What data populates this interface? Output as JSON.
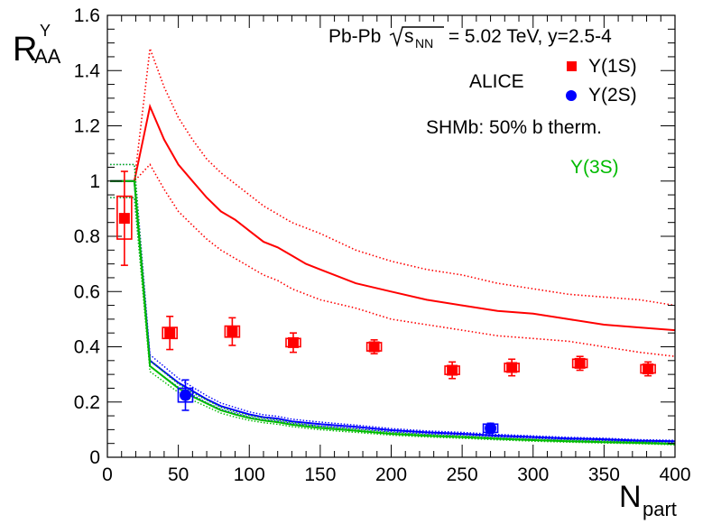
{
  "chart_data": {
    "type": "scatter",
    "title": "",
    "xlabel_main": "N",
    "xlabel_sub": "part",
    "ylabel_main": "R",
    "ylabel_sub": "AA",
    "ylabel_sup": "Υ",
    "xlim": [
      0,
      400
    ],
    "ylim": [
      0,
      1.6
    ],
    "x_ticks": [
      0,
      50,
      100,
      150,
      200,
      250,
      300,
      350,
      400
    ],
    "x_tick_labels": [
      "0",
      "50",
      "100",
      "150",
      "200",
      "250",
      "300",
      "350",
      "400"
    ],
    "y_ticks": [
      0,
      0.2,
      0.4,
      0.6,
      0.8,
      1,
      1.2,
      1.4,
      1.6
    ],
    "y_tick_labels": [
      "0",
      "0.2",
      "0.4",
      "0.6",
      "0.8",
      "1",
      "1.2",
      "1.4",
      "1.6"
    ],
    "annotations": {
      "system_pre": "Pb-Pb ",
      "sqrt_s": "s",
      "sqrt_s_sub": "NN",
      "system_post": " = 5.02 TeV, y=2.5-4",
      "experiment": "ALICE",
      "model": "SHMb: 50% b therm."
    },
    "legend": {
      "position": "top-right",
      "entries": [
        "Υ(1S)",
        "Υ(2S)",
        "Υ(3S)"
      ]
    },
    "data_series": [
      {
        "name": "Υ(1S)",
        "color": "#ff0000",
        "marker": "square",
        "points": [
          {
            "x": 12,
            "y": 0.865,
            "stat": 0.17,
            "sys_lo": 0.79,
            "sys_hi": 0.945
          },
          {
            "x": 44,
            "y": 0.45,
            "stat": 0.06,
            "sys_lo": 0.43,
            "sys_hi": 0.47
          },
          {
            "x": 88,
            "y": 0.455,
            "stat": 0.05,
            "sys_lo": 0.435,
            "sys_hi": 0.475
          },
          {
            "x": 131,
            "y": 0.415,
            "stat": 0.035,
            "sys_lo": 0.4,
            "sys_hi": 0.43
          },
          {
            "x": 188,
            "y": 0.4,
            "stat": 0.025,
            "sys_lo": 0.385,
            "sys_hi": 0.415
          },
          {
            "x": 243,
            "y": 0.315,
            "stat": 0.03,
            "sys_lo": 0.3,
            "sys_hi": 0.33
          },
          {
            "x": 285,
            "y": 0.325,
            "stat": 0.03,
            "sys_lo": 0.31,
            "sys_hi": 0.34
          },
          {
            "x": 333,
            "y": 0.34,
            "stat": 0.025,
            "sys_lo": 0.325,
            "sys_hi": 0.355
          },
          {
            "x": 381,
            "y": 0.32,
            "stat": 0.025,
            "sys_lo": 0.305,
            "sys_hi": 0.335
          }
        ]
      },
      {
        "name": "Υ(2S)",
        "color": "#0000ff",
        "marker": "circle",
        "points": [
          {
            "x": 55,
            "y": 0.225,
            "stat": 0.055,
            "sys_lo": 0.2,
            "sys_hi": 0.25
          },
          {
            "x": 270,
            "y": 0.105,
            "stat": 0.018,
            "sys_lo": 0.09,
            "sys_hi": 0.12
          }
        ]
      }
    ],
    "model_curves": [
      {
        "name": "Υ(1S) SHMb",
        "color": "#ff0000",
        "style": "solid",
        "x": [
          2,
          19,
          30,
          40,
          50,
          60,
          70,
          80,
          90,
          100,
          110,
          120,
          130,
          140,
          150,
          175,
          200,
          225,
          250,
          275,
          300,
          325,
          350,
          375,
          400
        ],
        "y": [
          1.0,
          1.0,
          1.27,
          1.15,
          1.06,
          1.0,
          0.94,
          0.89,
          0.86,
          0.82,
          0.78,
          0.76,
          0.73,
          0.7,
          0.68,
          0.63,
          0.6,
          0.57,
          0.55,
          0.53,
          0.52,
          0.5,
          0.48,
          0.47,
          0.46
        ]
      },
      {
        "name": "Υ(1S) SHMb upper",
        "color": "#ff0000",
        "style": "dotted",
        "x": [
          2,
          19,
          30,
          40,
          50,
          60,
          70,
          80,
          90,
          100,
          110,
          120,
          130,
          140,
          150,
          175,
          200,
          225,
          250,
          275,
          300,
          325,
          350,
          375,
          400
        ],
        "y": [
          1.0,
          1.0,
          1.48,
          1.34,
          1.23,
          1.15,
          1.08,
          1.03,
          0.99,
          0.95,
          0.91,
          0.88,
          0.85,
          0.83,
          0.81,
          0.75,
          0.71,
          0.68,
          0.66,
          0.63,
          0.61,
          0.59,
          0.58,
          0.57,
          0.55
        ]
      },
      {
        "name": "Υ(1S) SHMb lower",
        "color": "#ff0000",
        "style": "dotted",
        "x": [
          2,
          19,
          30,
          40,
          50,
          60,
          70,
          80,
          90,
          100,
          110,
          120,
          130,
          140,
          150,
          175,
          200,
          225,
          250,
          275,
          300,
          325,
          350,
          375,
          400
        ],
        "y": [
          1.0,
          1.0,
          1.06,
          0.97,
          0.89,
          0.84,
          0.79,
          0.75,
          0.72,
          0.69,
          0.66,
          0.64,
          0.61,
          0.59,
          0.57,
          0.54,
          0.5,
          0.48,
          0.46,
          0.44,
          0.43,
          0.42,
          0.4,
          0.38,
          0.365
        ]
      },
      {
        "name": "Υ(2S) SHMb",
        "color": "#0000ff",
        "style": "solid",
        "x": [
          2,
          19,
          30,
          40,
          50,
          60,
          70,
          80,
          90,
          100,
          110,
          120,
          130,
          140,
          150,
          175,
          200,
          225,
          250,
          275,
          300,
          325,
          350,
          375,
          400
        ],
        "y": [
          1.0,
          1.0,
          0.35,
          0.31,
          0.27,
          0.24,
          0.21,
          0.185,
          0.17,
          0.155,
          0.145,
          0.14,
          0.13,
          0.125,
          0.12,
          0.11,
          0.098,
          0.09,
          0.085,
          0.078,
          0.073,
          0.068,
          0.065,
          0.06,
          0.058
        ]
      },
      {
        "name": "Υ(3S) SHMb",
        "color": "#00bb00",
        "style": "solid",
        "x": [
          2,
          19,
          30,
          40,
          50,
          60,
          70,
          80,
          90,
          100,
          110,
          120,
          130,
          140,
          150,
          175,
          200,
          225,
          250,
          275,
          300,
          325,
          350,
          375,
          400
        ],
        "y": [
          1.0,
          1.0,
          0.33,
          0.29,
          0.25,
          0.22,
          0.195,
          0.17,
          0.155,
          0.142,
          0.133,
          0.127,
          0.118,
          0.112,
          0.106,
          0.096,
          0.085,
          0.078,
          0.073,
          0.067,
          0.062,
          0.058,
          0.055,
          0.052,
          0.048
        ]
      }
    ]
  }
}
